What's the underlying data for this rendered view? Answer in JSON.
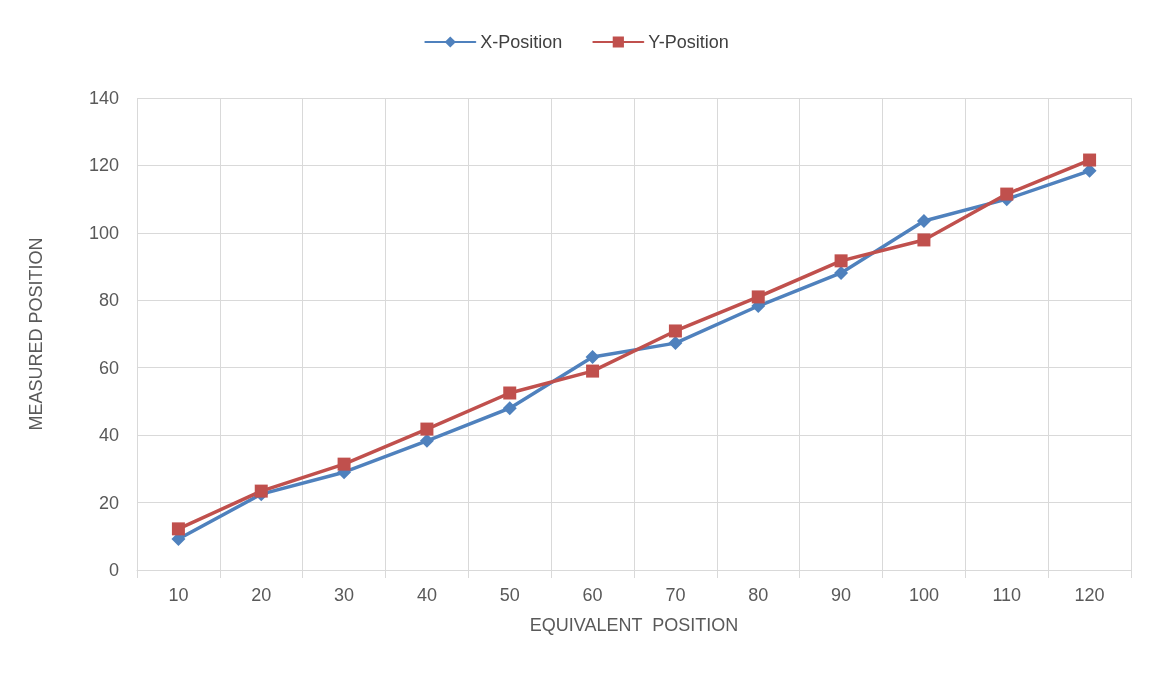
{
  "chart_data": {
    "type": "line",
    "xlabel": "EQUIVALENT  POSITION",
    "ylabel": "MEASURED POSITION",
    "categories": [
      "10",
      "20",
      "30",
      "40",
      "50",
      "60",
      "70",
      "80",
      "90",
      "100",
      "110",
      "120"
    ],
    "series": [
      {
        "name": "X-Position",
        "color": "#4f81bd",
        "marker": "diamond",
        "values": [
          9.2,
          22.5,
          29,
          38.3,
          48,
          63.2,
          67.3,
          78.3,
          88.1,
          103.5,
          110,
          118.4
        ]
      },
      {
        "name": "Y-Position",
        "color": "#c0504d",
        "marker": "square",
        "values": [
          12.2,
          23.4,
          31.4,
          41.8,
          52.5,
          59,
          70.9,
          81,
          91.7,
          97.9,
          111.5,
          121.6
        ]
      }
    ],
    "ylim": [
      0,
      140
    ],
    "yticks": [
      0,
      20,
      40,
      60,
      80,
      100,
      120,
      140
    ],
    "grid": true,
    "legend": "top",
    "line_style": "solid"
  }
}
